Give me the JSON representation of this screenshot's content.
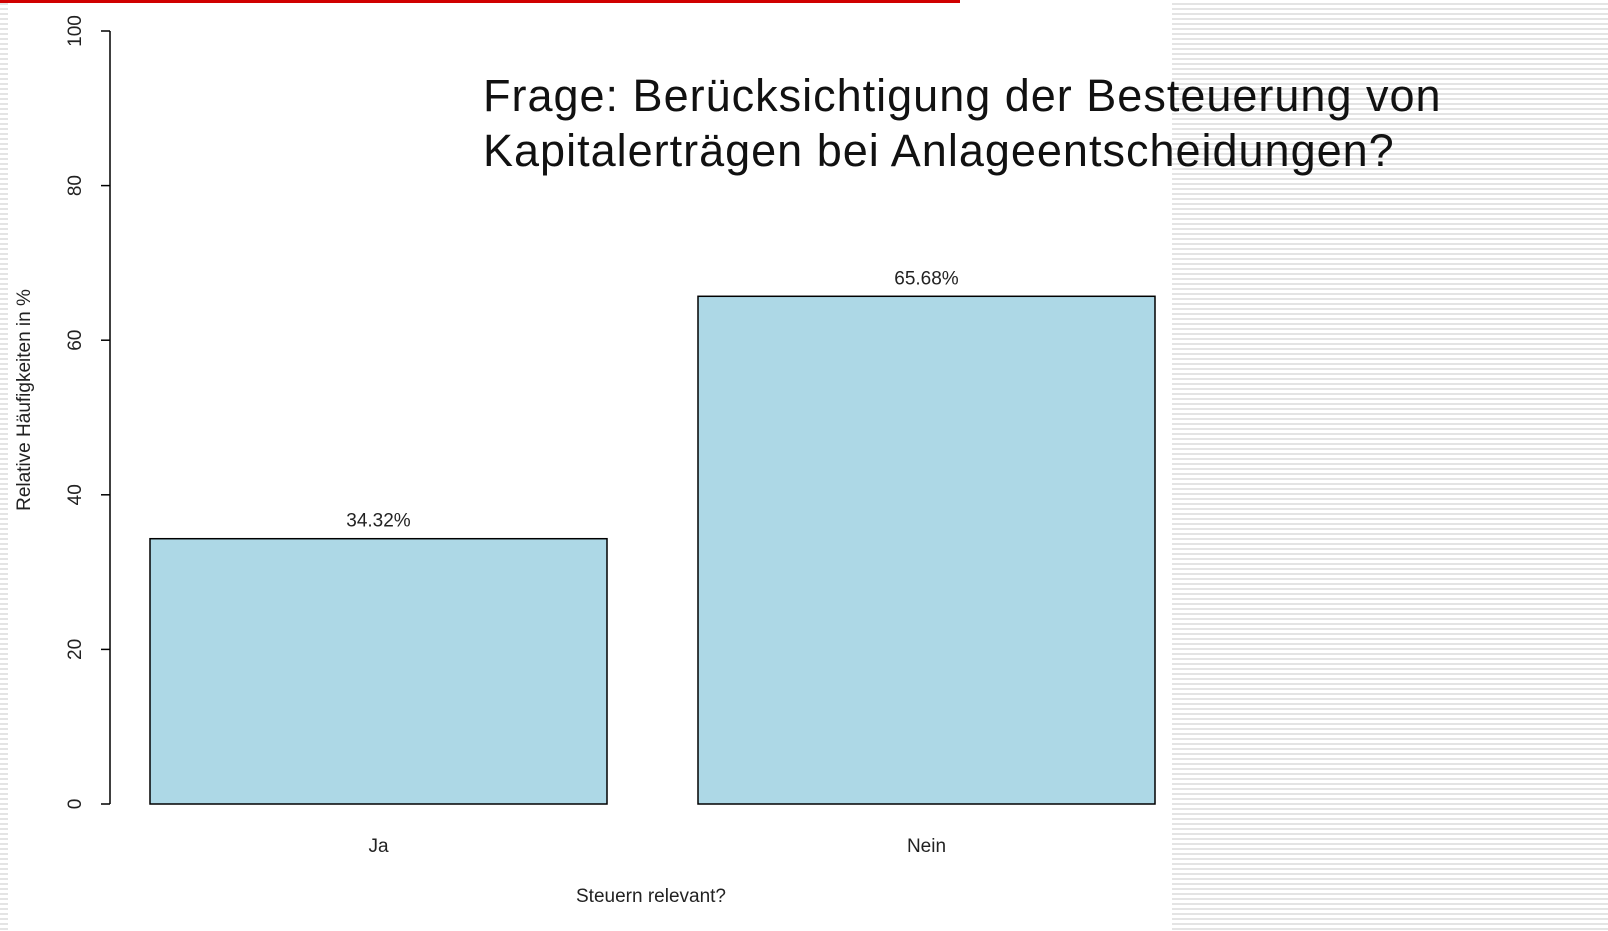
{
  "chart_data": {
    "type": "bar",
    "title": [
      "Frage: Berücksichtigung der Besteuerung von",
      "Kapitalerträgen bei Anlageentscheidungen?"
    ],
    "x_label": "Steuern relevant?",
    "y_label": "Relative Häufigkeiten in %",
    "categories": [
      "Ja",
      "Nein"
    ],
    "values": [
      34.32,
      65.68
    ],
    "value_labels": [
      "34.32%",
      "65.68%"
    ],
    "color": "#add8e6",
    "ylim": [
      0,
      100
    ],
    "yticks": [
      0,
      20,
      40,
      60,
      80,
      100
    ]
  }
}
